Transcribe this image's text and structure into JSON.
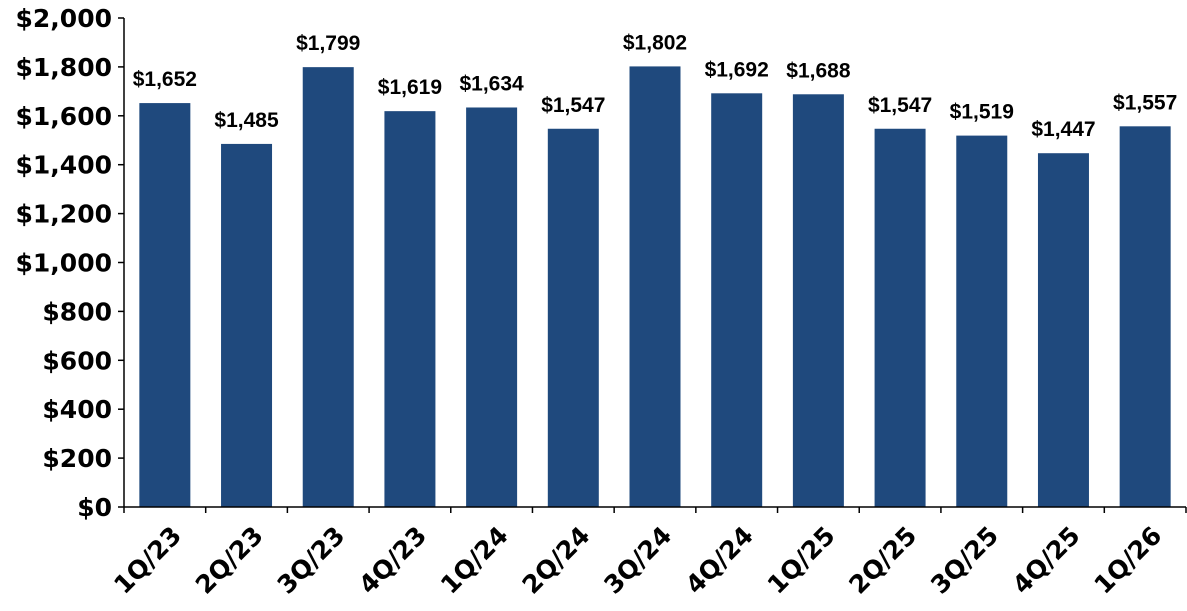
{
  "chart_data": {
    "type": "bar",
    "categories": [
      "1Q/23",
      "2Q/23",
      "3Q/23",
      "4Q/23",
      "1Q/24",
      "2Q/24",
      "3Q/24",
      "4Q/24",
      "1Q/25",
      "2Q/25",
      "3Q/25",
      "4Q/25",
      "1Q/26"
    ],
    "values": [
      1652,
      1485,
      1799,
      1619,
      1634,
      1547,
      1802,
      1692,
      1688,
      1547,
      1519,
      1447,
      1557
    ],
    "data_labels": [
      "$1,652",
      "$1,485",
      "$1,799",
      "$1,619",
      "$1,634",
      "$1,547",
      "$1,802",
      "$1,692",
      "$1,688",
      "$1,547",
      "$1,519",
      "$1,447",
      "$1,557"
    ],
    "yticks": [
      0,
      200,
      400,
      600,
      800,
      1000,
      1200,
      1400,
      1600,
      1800,
      2000
    ],
    "ytick_labels": [
      "$0",
      "$200",
      "$400",
      "$600",
      "$800",
      "$1,000",
      "$1,200",
      "$1,400",
      "$1,600",
      "$1,800",
      "$2,000"
    ],
    "ylim": [
      0,
      2000
    ],
    "title": "",
    "xlabel": "",
    "ylabel": "",
    "grid": false,
    "legend": "none",
    "bar_color": "#1f497d",
    "axis_color": "#000000"
  }
}
